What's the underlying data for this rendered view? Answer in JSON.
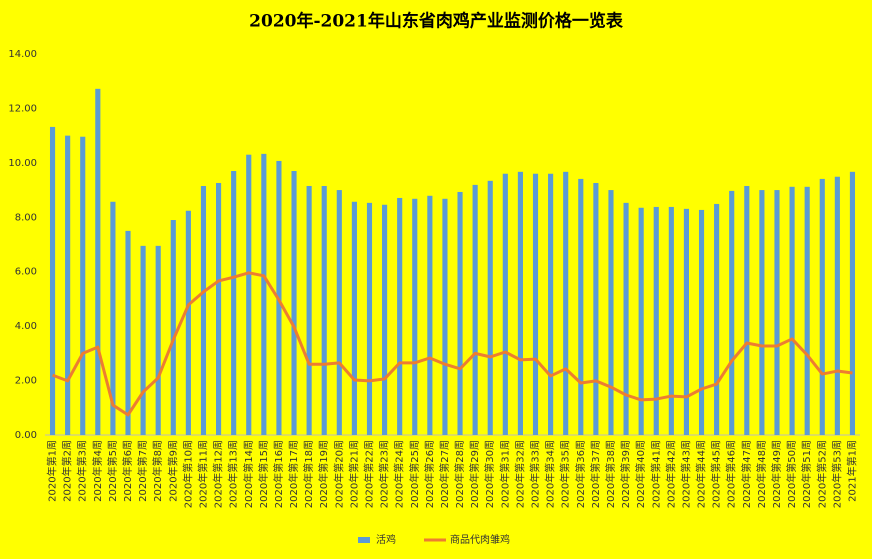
{
  "chart_data": {
    "type": "bar-line",
    "title": "2020年-2021年山东省肉鸡产业监测价格一览表",
    "categories": [
      "2020年第1周",
      "2020年第2周",
      "2020年第3周",
      "2020年第4周",
      "2020年第5周",
      "2020年第6周",
      "2020年第7周",
      "2020年第8周",
      "2020年第9周",
      "2020年第10周",
      "2020年第11周",
      "2020年第12周",
      "2020年第13周",
      "2020年第14周",
      "2020年第15周",
      "2020年第16周",
      "2020年第17周",
      "2020年第18周",
      "2020年第19周",
      "2020年第20周",
      "2020年第21周",
      "2020年第22周",
      "2020年第23周",
      "2020年第24周",
      "2020年第25周",
      "2020年第26周",
      "2020年第27周",
      "2020年第28周",
      "2020年第29周",
      "2020年第30周",
      "2020年第31周",
      "2020年第32周",
      "2020年第33周",
      "2020年第34周",
      "2020年第35周",
      "2020年第36周",
      "2020年第37周",
      "2020年第38周",
      "2020年第39周",
      "2020年第40周",
      "2020年第41周",
      "2020年第42周",
      "2020年第43周",
      "2020年第44周",
      "2020年第45周",
      "2020年第46周",
      "2020年第47周",
      "2020年第48周",
      "2020年第49周",
      "2020年第50周",
      "2020年第51周",
      "2020年第52周",
      "2020年第53周",
      "2021年第1周"
    ],
    "series": [
      {
        "name": "活鸡",
        "type": "bar",
        "color": "#5b9bd5",
        "values": [
          11.32,
          11.0,
          10.96,
          12.72,
          8.57,
          7.5,
          6.95,
          6.95,
          7.9,
          8.24,
          9.15,
          9.26,
          9.7,
          10.3,
          10.33,
          10.07,
          9.7,
          9.15,
          9.15,
          9.0,
          8.57,
          8.53,
          8.46,
          8.71,
          8.68,
          8.79,
          8.68,
          8.93,
          9.19,
          9.34,
          9.6,
          9.67,
          9.6,
          9.6,
          9.67,
          9.41,
          9.26,
          9.0,
          8.53,
          8.35,
          8.38,
          8.38,
          8.31,
          8.27,
          8.49,
          8.97,
          9.15,
          9.0,
          9.0,
          9.12,
          9.12,
          9.41,
          9.49,
          9.67
        ]
      },
      {
        "name": "商品代肉雏鸡",
        "type": "line",
        "color": "#ed7d31",
        "values": [
          2.2,
          1.99,
          3.0,
          3.23,
          1.1,
          0.74,
          1.58,
          2.1,
          3.5,
          4.78,
          5.26,
          5.66,
          5.8,
          5.96,
          5.85,
          4.96,
          3.97,
          2.6,
          2.6,
          2.65,
          2.02,
          1.99,
          2.06,
          2.65,
          2.65,
          2.83,
          2.6,
          2.43,
          3.0,
          2.87,
          3.05,
          2.76,
          2.79,
          2.17,
          2.43,
          1.91,
          1.99,
          1.76,
          1.47,
          1.29,
          1.32,
          1.43,
          1.4,
          1.69,
          1.87,
          2.72,
          3.38,
          3.27,
          3.27,
          3.53,
          2.94,
          2.24,
          2.35,
          2.28
        ]
      }
    ],
    "ylim": [
      0,
      14
    ],
    "yticks": [
      {
        "value": 0,
        "label": "0.00"
      },
      {
        "value": 2,
        "label": "2.00"
      },
      {
        "value": 4,
        "label": "4.00"
      },
      {
        "value": 6,
        "label": "6.00"
      },
      {
        "value": 8,
        "label": "8.00"
      },
      {
        "value": 10,
        "label": "10.00"
      },
      {
        "value": 12,
        "label": "12.00"
      },
      {
        "value": 14,
        "label": "14.00"
      }
    ],
    "grid": false,
    "legend": "bottom",
    "background": "#ffff00"
  }
}
